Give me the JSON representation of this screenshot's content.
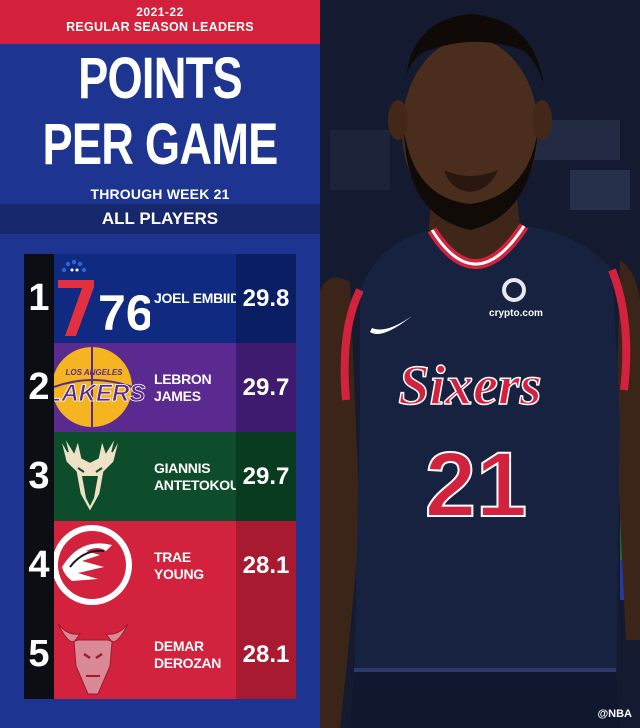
{
  "header": {
    "season": "2021-22",
    "subtitle": "REGULAR SEASON LEADERS"
  },
  "title": {
    "line1": "POINTS",
    "line2": "PER GAME"
  },
  "through": "THROUGH WEEK 21",
  "filter": "ALL PLAYERS",
  "leaders": [
    {
      "rank": "1",
      "name_l1": "JOEL EMBIID",
      "name_l2": "",
      "value": "29.8",
      "team_logo": "76ers-logo"
    },
    {
      "rank": "2",
      "name_l1": "LEBRON JAMES",
      "name_l2": "",
      "value": "29.7",
      "team_logo": "lakers-logo"
    },
    {
      "rank": "3",
      "name_l1": "GIANNIS",
      "name_l2": "ANTETOKOUNMPO",
      "value": "29.7",
      "team_logo": "bucks-logo"
    },
    {
      "rank": "4",
      "name_l1": "TRAE YOUNG",
      "name_l2": "",
      "value": "28.1",
      "team_logo": "hawks-logo"
    },
    {
      "rank": "5",
      "name_l1": "DEMAR DEROZAN",
      "name_l2": "",
      "value": "28.1",
      "team_logo": "bulls-logo"
    }
  ],
  "logos": {
    "lakers_text": "LOS ANGELES",
    "lakers_word": "LAKERS",
    "sixers_number": "76"
  },
  "jersey": {
    "team_text": "Sixers",
    "number": "21",
    "sponsor": "crypto.com"
  },
  "credit": "@NBA",
  "colors": {
    "header_red": "#d3213c",
    "panel_blue": "#1d3590",
    "sixers_row": "#0f2a80",
    "lakers_row": "#5a2a91",
    "bucks_row": "#0e4d2b",
    "hawks_row": "#d2223d",
    "bulls_row": "#d2223d"
  }
}
